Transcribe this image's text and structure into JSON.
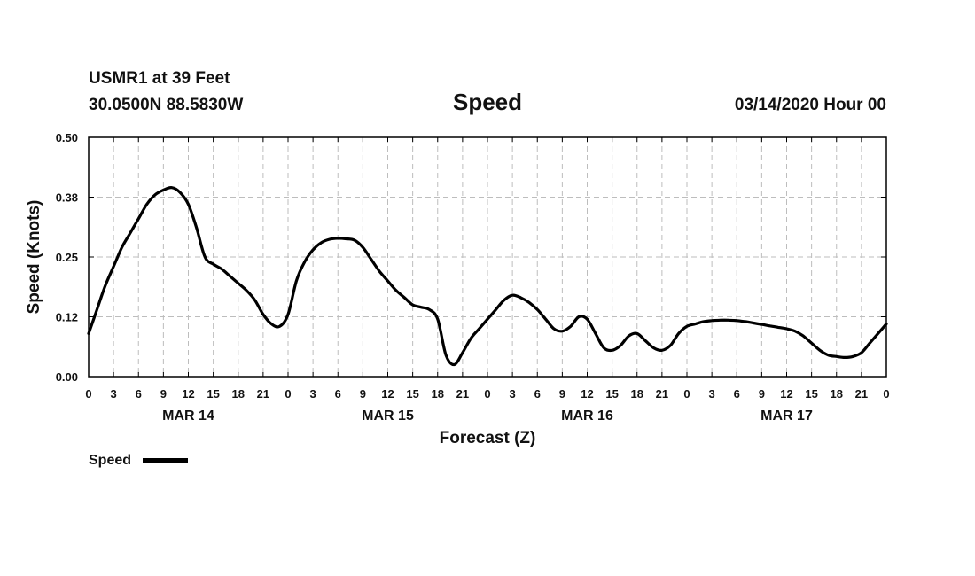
{
  "header": {
    "station": "USMR1 at 39 Feet",
    "location": "30.0500N 88.5830W",
    "run": "03/14/2020 Hour 00"
  },
  "chart_data": {
    "type": "line",
    "title": "Speed",
    "xlabel": "Forecast (Z)",
    "ylabel": "Speed (Knots)",
    "ylim": [
      0,
      0.5
    ],
    "yticks": [
      "0.00",
      "0.12",
      "0.25",
      "0.38",
      "0.50"
    ],
    "xlim_hours": [
      0,
      96
    ],
    "xtick_labels": [
      "0",
      "3",
      "6",
      "9",
      "12",
      "15",
      "18",
      "21",
      "0",
      "3",
      "6",
      "9",
      "12",
      "15",
      "18",
      "21",
      "0",
      "3",
      "6",
      "9",
      "12",
      "15",
      "18",
      "21",
      "0",
      "3",
      "6",
      "9",
      "12",
      "15",
      "18",
      "21",
      "0"
    ],
    "day_labels": [
      {
        "label": "MAR 14",
        "hour": 12
      },
      {
        "label": "MAR 15",
        "hour": 36
      },
      {
        "label": "MAR 16",
        "hour": 60
      },
      {
        "label": "MAR 17",
        "hour": 84
      }
    ],
    "grid": true,
    "legend_position": "bottom-left",
    "series": [
      {
        "name": "Speed",
        "color": "#000000",
        "x": [
          0,
          1,
          2,
          3,
          4,
          5,
          6,
          7,
          8,
          9,
          10,
          11,
          12,
          13,
          14,
          15,
          16,
          17,
          18,
          19,
          20,
          21,
          22,
          23,
          24,
          25,
          26,
          27,
          28,
          29,
          30,
          31,
          32,
          33,
          34,
          35,
          36,
          37,
          38,
          39,
          40,
          41,
          42,
          43,
          44,
          45,
          46,
          47,
          48,
          49,
          50,
          51,
          52,
          53,
          54,
          55,
          56,
          57,
          58,
          59,
          60,
          61,
          62,
          63,
          64,
          65,
          66,
          67,
          68,
          69,
          70,
          71,
          72,
          73,
          74,
          75,
          76,
          77,
          78,
          79,
          80,
          81,
          82,
          83,
          84,
          85,
          86,
          87,
          88,
          89,
          90,
          91,
          92,
          93,
          94,
          95,
          96
        ],
        "y": [
          0.09,
          0.14,
          0.19,
          0.23,
          0.27,
          0.3,
          0.33,
          0.36,
          0.38,
          0.39,
          0.395,
          0.385,
          0.36,
          0.31,
          0.25,
          0.235,
          0.225,
          0.21,
          0.195,
          0.18,
          0.16,
          0.13,
          0.11,
          0.105,
          0.13,
          0.2,
          0.24,
          0.265,
          0.28,
          0.287,
          0.289,
          0.288,
          0.285,
          0.27,
          0.245,
          0.22,
          0.2,
          0.18,
          0.165,
          0.15,
          0.145,
          0.14,
          0.12,
          0.045,
          0.025,
          0.05,
          0.08,
          0.1,
          0.12,
          0.14,
          0.16,
          0.17,
          0.165,
          0.155,
          0.14,
          0.12,
          0.1,
          0.095,
          0.105,
          0.125,
          0.12,
          0.09,
          0.06,
          0.055,
          0.065,
          0.085,
          0.09,
          0.075,
          0.06,
          0.055,
          0.065,
          0.09,
          0.105,
          0.11,
          0.115,
          0.117,
          0.118,
          0.118,
          0.117,
          0.115,
          0.112,
          0.109,
          0.106,
          0.103,
          0.1,
          0.095,
          0.085,
          0.07,
          0.055,
          0.045,
          0.042,
          0.04,
          0.042,
          0.05,
          0.07,
          0.09,
          0.11
        ]
      }
    ]
  }
}
